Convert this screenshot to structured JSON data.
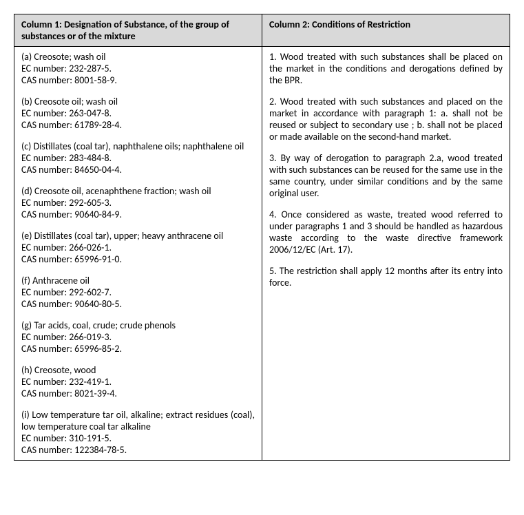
{
  "table": {
    "header_col1": "Column 1: Designation of Substance, of the group of substances or of the mixture",
    "header_col2": "Column 2: Conditions of Restriction",
    "substances": [
      {
        "name": "(a) Creosote; wash oil",
        "ec": "EC number: 232-287-5.",
        "cas": "CAS number: 8001-58-9."
      },
      {
        "name": "(b) Creosote oil; wash oil",
        "ec": "EC number: 263-047-8.",
        "cas": "CAS number: 61789-28-4."
      },
      {
        "name": "(c) Distillates (coal tar), naphthalene oils; naphthalene oil",
        "ec": "EC number: 283-484-8.",
        "cas": "CAS number: 84650-04-4."
      },
      {
        "name": "(d) Creosote oil, acenaphthene fraction; wash oil",
        "ec": "EC number: 292-605-3.",
        "cas": "CAS number: 90640-84-9."
      },
      {
        "name": "(e) Distillates (coal tar), upper; heavy anthracene oil",
        "ec": "EC number: 266-026-1.",
        "cas": "CAS number: 65996-91-0."
      },
      {
        "name": "(f) Anthracene oil",
        "ec": "EC number: 292-602-7.",
        "cas": "CAS number: 90640-80-5."
      },
      {
        "name": "(g) Tar acids, coal, crude; crude phenols",
        "ec": "EC number: 266-019-3.",
        "cas": "CAS number: 65996-85-2."
      },
      {
        "name": "(h) Creosote, wood",
        "ec": "EC number: 232-419-1.",
        "cas": "CAS number: 8021-39-4."
      },
      {
        "name": "(i) Low temperature tar oil, alkaline; extract residues (coal), low temperature coal tar alkaline",
        "ec": "EC number: 310-191-5.",
        "cas": "CAS number: 122384-78-5."
      }
    ],
    "conditions": [
      "1. Wood treated with such substances shall be placed on the market in the conditions and derogations defined by the BPR.",
      "2. Wood treated with such substances and placed on the market in accordance with paragraph 1: a. shall not be reused or subject to secondary use ;\nb. shall not be placed or made available on the second-hand market.",
      "3. By way of derogation to paragraph 2.a, wood treated with such substances can be reused for the same use in the same country, under similar conditions and by the same original user.",
      "4. Once considered as waste, treated wood referred to under paragraphs 1 and 3 should be handled as hazardous waste according to the waste directive framework 2006/12/EC (Art. 17).",
      "5. The restriction shall apply 12 months after its entry into force."
    ]
  },
  "colors": {
    "header_bg": "#d9d9d9",
    "border": "#000000",
    "text": "#000000",
    "page_bg": "#ffffff"
  },
  "typography": {
    "font_family": "Calibri",
    "body_fontsize_pt": 11,
    "header_weight": "bold"
  },
  "layout": {
    "col1_width_pct": 50,
    "col2_width_pct": 50,
    "text_align_body": "justify"
  }
}
